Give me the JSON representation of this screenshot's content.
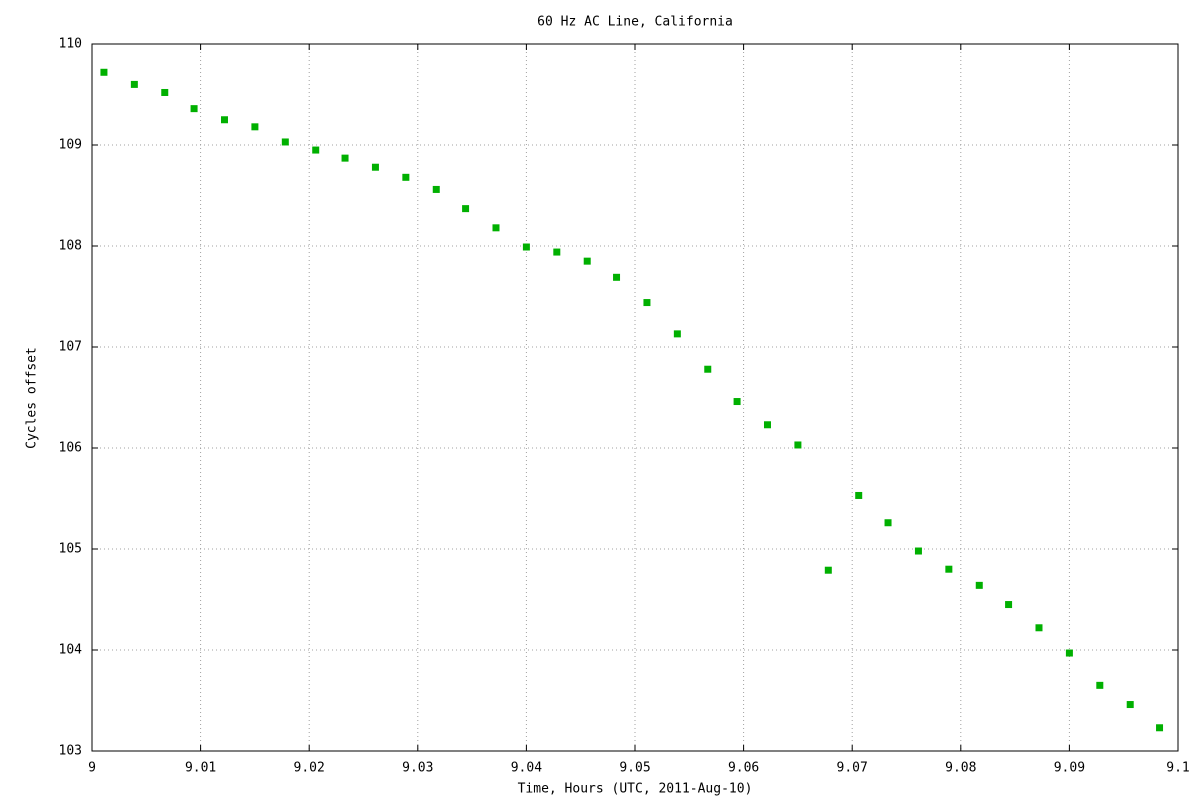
{
  "chart_data": {
    "type": "scatter",
    "title": "60 Hz AC Line, California",
    "x_label": "Time, Hours (UTC, 2011-Aug-10)",
    "y_label": "Cycles offset",
    "series": [
      {
        "color": "#00b000",
        "x": [
          9.0011,
          9.0039,
          9.0067,
          9.0094,
          9.0122,
          9.015,
          9.0178,
          9.0206,
          9.0233,
          9.0261,
          9.0289,
          9.0317,
          9.0344,
          9.0372,
          9.04,
          9.0428,
          9.0456,
          9.0483,
          9.0511,
          9.0539,
          9.0567,
          9.0594,
          9.0622,
          9.065,
          9.0678,
          9.0706,
          9.0733,
          9.0761,
          9.0789,
          9.0817,
          9.0844,
          9.0872,
          9.09,
          9.0928,
          9.0956,
          9.0983
        ],
        "values": [
          109.72,
          109.6,
          109.52,
          109.36,
          109.25,
          109.18,
          109.03,
          108.95,
          108.87,
          108.78,
          108.68,
          108.56,
          108.37,
          108.18,
          107.99,
          107.94,
          107.85,
          107.69,
          107.44,
          107.13,
          106.78,
          106.46,
          106.23,
          106.03,
          104.79,
          105.53,
          105.26,
          104.98,
          104.8,
          104.64,
          104.45,
          104.22,
          103.97,
          103.65,
          103.46,
          103.23
        ]
      }
    ],
    "xlim": [
      9,
      9.1
    ],
    "xticks": [
      9,
      9.01,
      9.02,
      9.03,
      9.04,
      9.05,
      9.06,
      9.07,
      9.08,
      9.09,
      9.1
    ],
    "ylim": [
      103,
      110
    ],
    "yticks": [
      103,
      104,
      105,
      106,
      107,
      108,
      109,
      110
    ],
    "grid": true
  }
}
